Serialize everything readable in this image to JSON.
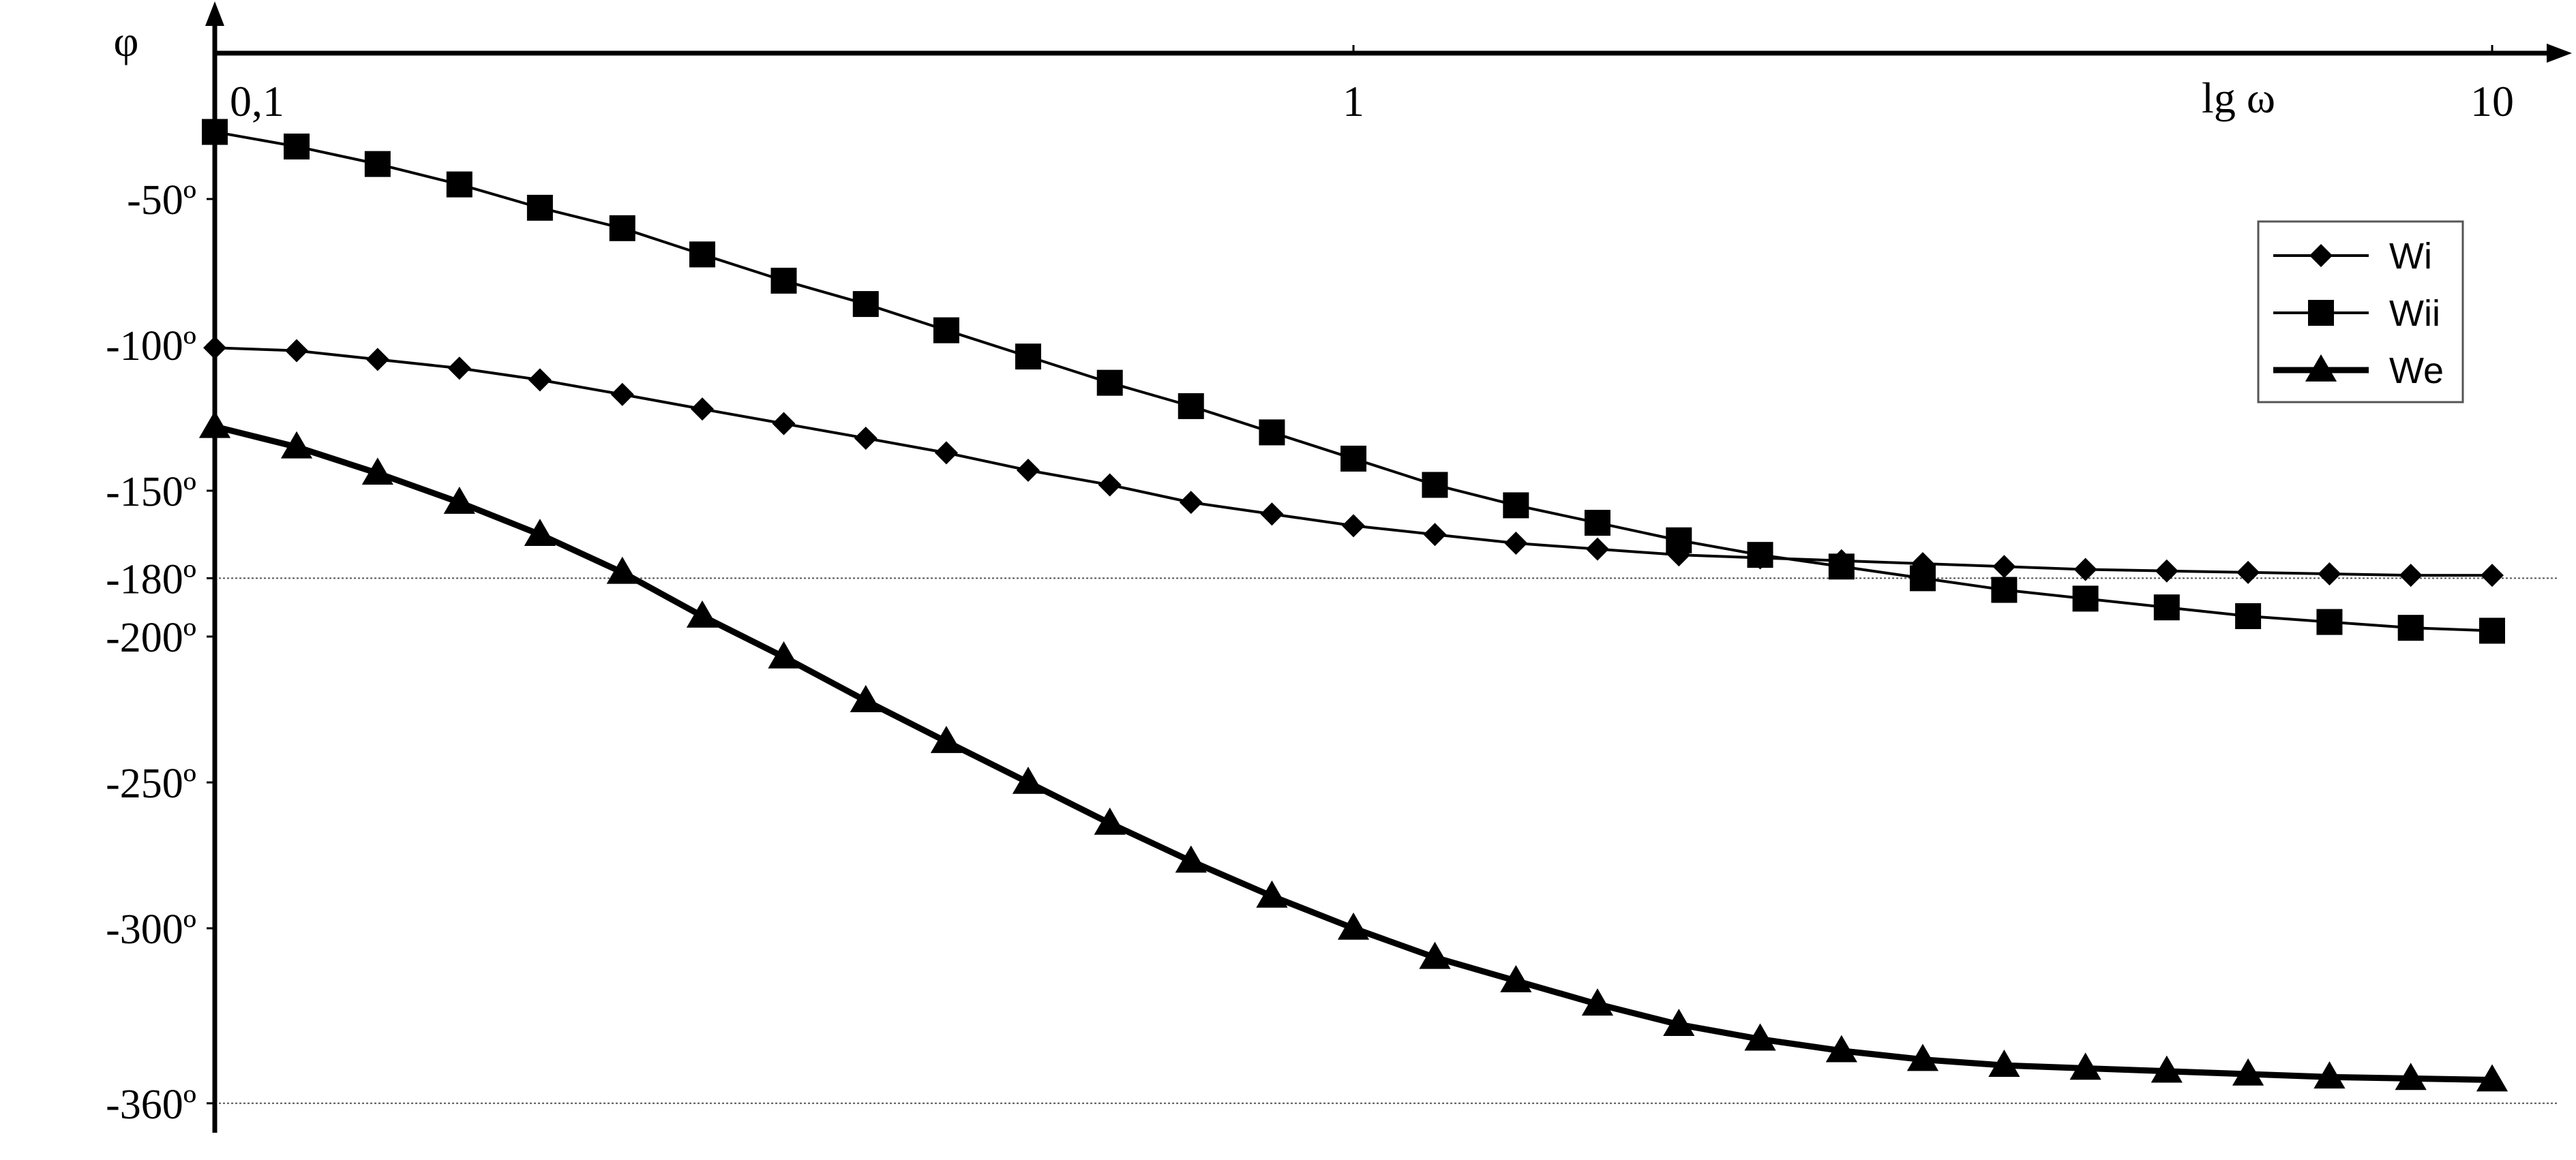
{
  "chart_data": {
    "type": "line",
    "title": "",
    "xlabel": "lg ω",
    "ylabel": "φ",
    "x_scale": "log",
    "xlim": [
      0.1,
      10
    ],
    "ylim": [
      -360,
      0
    ],
    "x_ticks": [
      {
        "value": 0.1,
        "label": "0,1"
      },
      {
        "value": 1,
        "label": "1"
      },
      {
        "value": 10,
        "label": "10"
      }
    ],
    "y_ticks": [
      {
        "value": -50,
        "label": "-50º"
      },
      {
        "value": -100,
        "label": "-100º"
      },
      {
        "value": -150,
        "label": "-150º"
      },
      {
        "value": -180,
        "label": "-180º"
      },
      {
        "value": -200,
        "label": "-200º"
      },
      {
        "value": -250,
        "label": "-250º"
      },
      {
        "value": -300,
        "label": "-300º"
      },
      {
        "value": -360,
        "label": "-360º"
      }
    ],
    "reference_lines": [
      -180,
      -360
    ],
    "legend_position": "top-right",
    "x": [
      0.1,
      0.118,
      0.139,
      0.164,
      0.193,
      0.228,
      0.268,
      0.316,
      0.373,
      0.439,
      0.518,
      0.611,
      0.72,
      0.848,
      1.0,
      1.179,
      1.389,
      1.638,
      1.931,
      2.276,
      2.683,
      3.162,
      3.728,
      4.394,
      5.179,
      6.105,
      7.197,
      8.483,
      10.0
    ],
    "series": [
      {
        "name": "Wi",
        "marker": "diamond",
        "values": [
          -101,
          -102,
          -105,
          -108,
          -112,
          -117,
          -122,
          -127,
          -132,
          -137,
          -143,
          -148,
          -154,
          -158,
          -162,
          -165,
          -168,
          -170,
          -172,
          -173,
          -174,
          -175,
          -176,
          -177,
          -177.5,
          -178,
          -178.5,
          -179,
          -179
        ]
      },
      {
        "name": "Wii",
        "marker": "square",
        "values": [
          -27,
          -32,
          -38,
          -45,
          -53,
          -60,
          -69,
          -78,
          -86,
          -95,
          -104,
          -113,
          -121,
          -130,
          -139,
          -148,
          -155,
          -161,
          -167,
          -172,
          -176,
          -180,
          -184,
          -187,
          -190,
          -193,
          -195,
          -197,
          -198
        ]
      },
      {
        "name": "We",
        "marker": "triangle",
        "values": [
          -128,
          -135,
          -144,
          -154,
          -165,
          -178,
          -193,
          -207,
          -222,
          -236,
          -250,
          -264,
          -277,
          -289,
          -300,
          -310,
          -318,
          -326,
          -333,
          -338,
          -342,
          -345,
          -347,
          -348,
          -349,
          -350,
          -351,
          -351.5,
          -352
        ]
      }
    ]
  }
}
